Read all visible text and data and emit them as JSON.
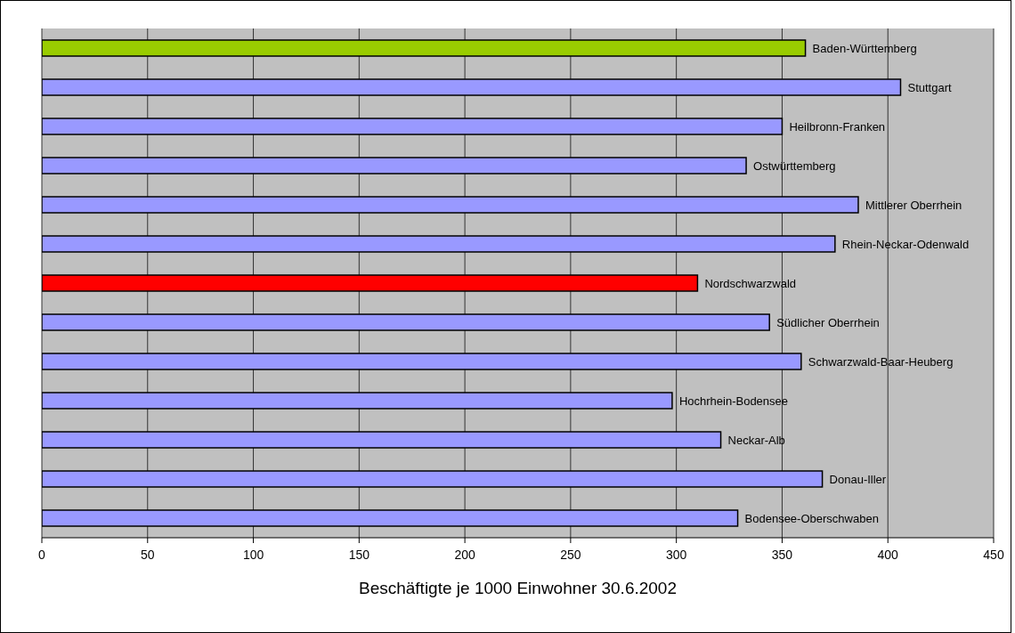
{
  "chart_data": {
    "type": "bar",
    "orientation": "horizontal",
    "xlabel": "Beschäftigte je 1000 Einwohner 30.6.2002",
    "categories": [
      "Baden-Württemberg",
      "Stuttgart",
      "Heilbronn-Franken",
      "Ostwürttemberg",
      "Mittlerer Oberrhein",
      "Rhein-Neckar-Odenwald",
      "Nordschwarzwald",
      "Südlicher Oberrhein",
      "Schwarzwald-Baar-Heuberg",
      "Hochrhein-Bodensee",
      "Neckar-Alb",
      "Donau-Iller",
      "Bodensee-Oberschwaben"
    ],
    "values": [
      361,
      406,
      350,
      333,
      386,
      375,
      310,
      344,
      359,
      298,
      321,
      369,
      329
    ],
    "colors": [
      "#99cc00",
      "#9999ff",
      "#9999ff",
      "#9999ff",
      "#9999ff",
      "#9999ff",
      "#ff0000",
      "#9999ff",
      "#9999ff",
      "#9999ff",
      "#9999ff",
      "#9999ff",
      "#9999ff"
    ],
    "xlim": [
      0,
      450
    ],
    "xticks": [
      0,
      50,
      100,
      150,
      200,
      250,
      300,
      350,
      400,
      450
    ],
    "grid": "x",
    "tick_labels": "x"
  }
}
